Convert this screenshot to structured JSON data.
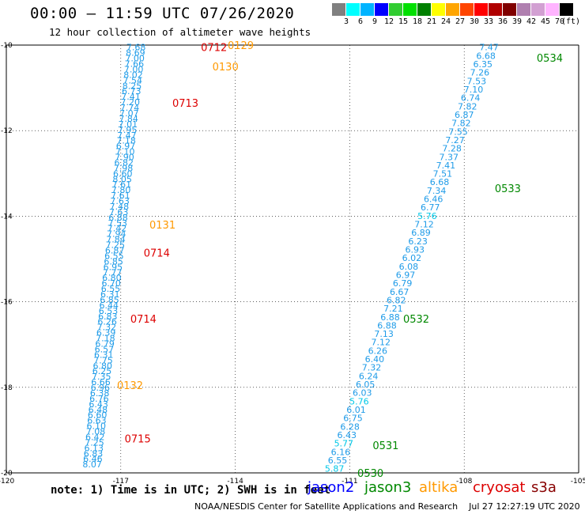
{
  "title": "00:00 — 11:59 UTC 07/26/2020",
  "subtitle": "12 hour collection of altimeter wave heights",
  "legend": {
    "colors": [
      "#808080",
      "#00ffff",
      "#00b4ff",
      "#0000ff",
      "#32cd32",
      "#00e000",
      "#008000",
      "#ffff00",
      "#ffa500",
      "#ff4500",
      "#ff0000",
      "#b00000",
      "#800000",
      "#b080b0",
      "#d2a0d2",
      "#ffb4ff",
      "#000000"
    ],
    "labels": [
      "3",
      "6",
      "9",
      "12",
      "15",
      "18",
      "21",
      "24",
      "27",
      "30",
      "33",
      "36",
      "39",
      "42",
      "45",
      "70",
      "(ft)"
    ]
  },
  "axes": {
    "x_ticks": [
      "-120",
      "-117",
      "-114",
      "-111",
      "-108",
      "-105"
    ],
    "y_ticks": [
      "-10",
      "-12",
      "-14",
      "-16",
      "-18",
      "-20"
    ]
  },
  "chart_data": {
    "type": "scatter",
    "x_range": [
      -120,
      -105
    ],
    "y_range": [
      -20,
      -10
    ],
    "tracks": [
      {
        "name": "west-track",
        "start": [
          -116.6,
          -10.05
        ],
        "end": [
          -117.75,
          -19.8
        ],
        "labels": [
          "7.68",
          "8.69",
          "7.00",
          "7.66",
          "7.00",
          "8.02",
          "7.54",
          "8.25",
          "6.73",
          "7.41",
          "7.20",
          "7.74",
          "7.07",
          "7.84",
          "7.01",
          "7.95",
          "7.47",
          "7.18",
          "6.97",
          "7.10",
          "7.90",
          "6.82",
          "7.98",
          "6.60",
          "8.05",
          "7.61",
          "7.80",
          "7.61",
          "7.63",
          "7.48",
          "7.63",
          "6.88",
          "7.53",
          "7.42",
          "7.94",
          "7.84",
          "7.25",
          "6.87",
          "6.55",
          "6.85",
          "6.95",
          "7.77",
          "6.80",
          "6.70",
          "6.55",
          "6.31",
          "6.85",
          "6.44",
          "6.53",
          "6.83",
          "6.26",
          "7.32",
          "6.39",
          "7.18",
          "6.79",
          "6.57",
          "6.31",
          "7.75",
          "6.80",
          "6.25",
          "7.35",
          "6.66",
          "6.96",
          "6.38",
          "6.76",
          "6.43",
          "6.48",
          "6.60",
          "6.63",
          "6.10",
          "7.08",
          "6.42",
          "7.25",
          "6.13",
          "6.83",
          "6.46",
          "8.07"
        ]
      },
      {
        "name": "east-track",
        "start": [
          -107.35,
          -10.05
        ],
        "end": [
          -111.4,
          -19.9
        ],
        "labels": [
          "7.47",
          "6.68",
          "6.35",
          "7.26",
          "7.53",
          "7.10",
          "6.74",
          "7.82",
          "6.87",
          "7.82",
          "7.55",
          "7.27",
          "7.28",
          "7.37",
          "7.41",
          "7.51",
          "6.68",
          "7.34",
          "6.46",
          "6.77",
          "5.76",
          "7.12",
          "6.89",
          "6.23",
          "6.93",
          "6.02",
          "6.08",
          "6.97",
          "6.79",
          "6.67",
          "6.82",
          "7.21",
          "6.88",
          "6.88",
          "7.13",
          "7.12",
          "6.26",
          "6.40",
          "7.32",
          "6.24",
          "6.05",
          "6.03",
          "5.76",
          "6.01",
          "6.75",
          "6.28",
          "6.43",
          "5.77",
          "6.16",
          "6.55",
          "5.87"
        ]
      }
    ],
    "time_labels": [
      {
        "text": "0129",
        "color": "#ff9900",
        "lon": -114.2,
        "lat": -10.0
      },
      {
        "text": "0712",
        "color": "#dd0000",
        "lon": -114.9,
        "lat": -10.05
      },
      {
        "text": "0130",
        "color": "#ff9900",
        "lon": -114.6,
        "lat": -10.5
      },
      {
        "text": "0713",
        "color": "#dd0000",
        "lon": -115.65,
        "lat": -11.35
      },
      {
        "text": "0131",
        "color": "#ff9900",
        "lon": -116.25,
        "lat": -14.2
      },
      {
        "text": "0714",
        "color": "#dd0000",
        "lon": -116.4,
        "lat": -14.85
      },
      {
        "text": "0714",
        "color": "#dd0000",
        "lon": -116.75,
        "lat": -16.4
      },
      {
        "text": "0132",
        "color": "#ff9900",
        "lon": -117.1,
        "lat": -17.95
      },
      {
        "text": "0715",
        "color": "#dd0000",
        "lon": -116.9,
        "lat": -19.2
      },
      {
        "text": "0534",
        "color": "#008800",
        "lon": -106.1,
        "lat": -10.3
      },
      {
        "text": "0533",
        "color": "#008800",
        "lon": -107.2,
        "lat": -13.35
      },
      {
        "text": "0532",
        "color": "#008800",
        "lon": -109.6,
        "lat": -16.4
      },
      {
        "text": "0531",
        "color": "#008800",
        "lon": -110.4,
        "lat": -19.35
      },
      {
        "text": "0530",
        "color": "#008800",
        "lon": -110.8,
        "lat": -20.0
      }
    ]
  },
  "note": "note: 1) Time is in UTC; 2) SWH is in feet",
  "satellites": [
    {
      "name": "jason2",
      "color": "#0000ff"
    },
    {
      "name": "jason3",
      "color": "#008800"
    },
    {
      "name": "altika",
      "color": "#ff9900"
    },
    {
      "name": "cryosat",
      "color": "#dd0000"
    },
    {
      "name": "s3a",
      "color": "#880000"
    }
  ],
  "credit": "NOAA/NESDIS Center for Satellite Applications and Research    Jul 27 12:27:19 UTC 2020"
}
